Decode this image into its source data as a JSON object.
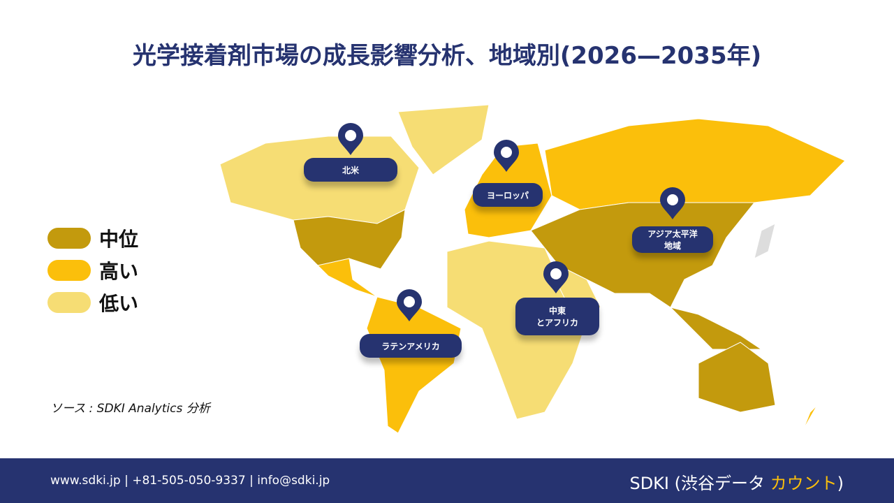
{
  "title": "光学接着剤市場の成長影響分析、地域別(2026—2035年)",
  "legend": [
    {
      "label": "中位",
      "color": "#c39a0d"
    },
    {
      "label": "高い",
      "color": "#fbbf0b"
    },
    {
      "label": "低い",
      "color": "#f6dd74"
    }
  ],
  "regions": [
    {
      "lines": [
        "北米"
      ]
    },
    {
      "lines": [
        "ヨーロッパ"
      ]
    },
    {
      "lines": [
        "アジア太平洋",
        "地域"
      ]
    },
    {
      "lines": [
        "中東",
        "とアフリカ"
      ]
    },
    {
      "lines": [
        "ラテンアメリカ"
      ]
    }
  ],
  "source": "ソース : SDKI Analytics 分析",
  "footer": {
    "contact": "www.sdki.jp | +81-505-050-9337 | info@sdki.jp",
    "brand": [
      "SDKI (渋谷データ ",
      "カウント",
      ")"
    ]
  }
}
